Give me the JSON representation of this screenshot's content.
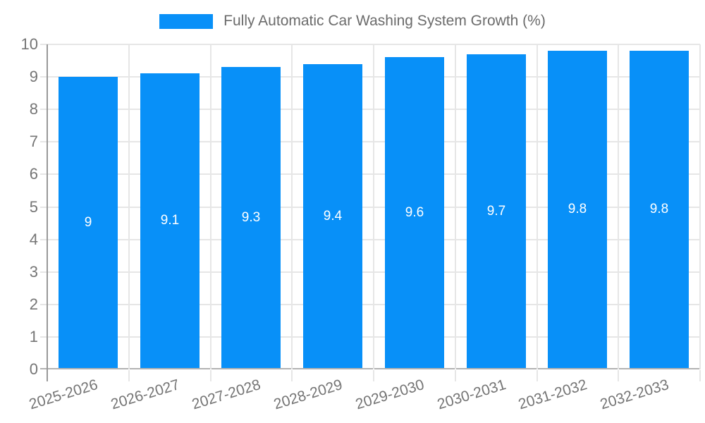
{
  "chart_data": {
    "type": "bar",
    "title": "Fully Automatic Car Washing System Growth (%)",
    "categories": [
      "2025-2026",
      "2026-2027",
      "2027-2028",
      "2028-2029",
      "2029-2030",
      "2030-2031",
      "2031-2032",
      "2032-2033"
    ],
    "values": [
      9,
      9.1,
      9.3,
      9.4,
      9.6,
      9.7,
      9.8,
      9.8
    ],
    "value_labels": [
      "9",
      "9.1",
      "9.3",
      "9.4",
      "9.6",
      "9.7",
      "9.8",
      "9.8"
    ],
    "xlabel": "",
    "ylabel": "",
    "ylim": [
      0,
      10
    ],
    "yticks": [
      0,
      1,
      2,
      3,
      4,
      5,
      6,
      7,
      8,
      9,
      10
    ],
    "grid": true,
    "legend_position": "top",
    "colors": {
      "bar": "#0890f8",
      "bar_label": "#ffffff",
      "grid": "#e6e6e6",
      "baseline": "#b3b3b3",
      "axis_line": "#999999",
      "tick_text": "#757575",
      "legend_text": "#6b6b6b"
    }
  }
}
